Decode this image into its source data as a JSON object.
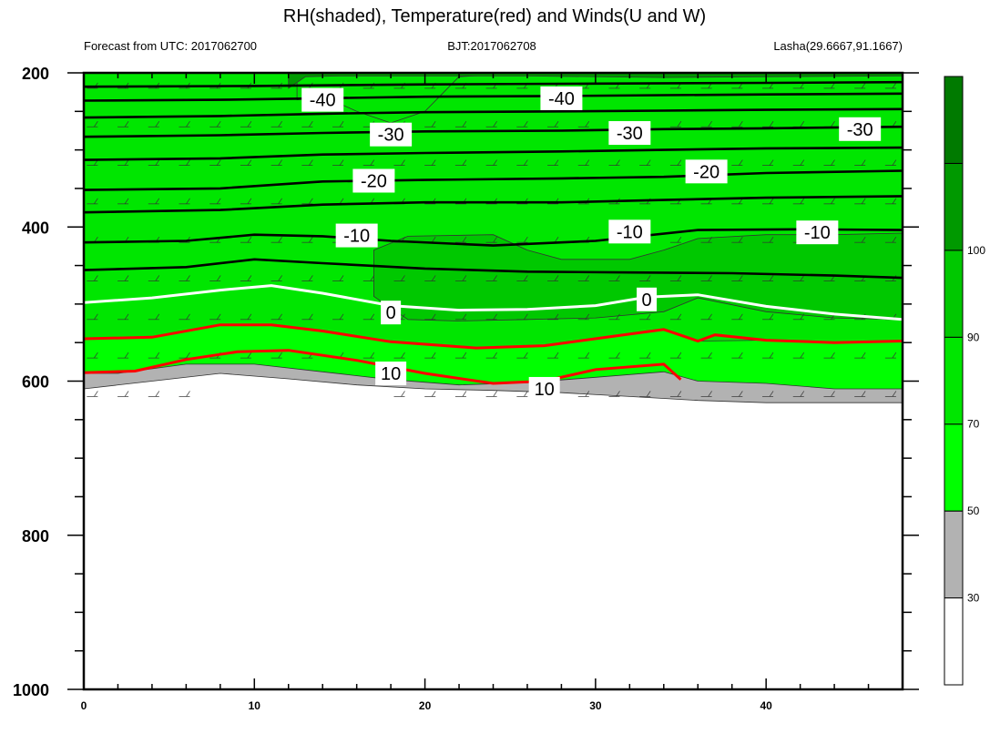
{
  "chart_data": {
    "type": "heatmap",
    "title": "RH(shaded), Temperature(red) and Winds(U and W)",
    "subtitle_left": "Forecast from UTC: 2017062700",
    "subtitle_center": "BJT:2017062708",
    "subtitle_right": "Lasha(29.6667,91.1667)",
    "x_ticks": [
      0,
      10,
      20,
      30,
      40
    ],
    "xlim": [
      0,
      48
    ],
    "y_ticks": [
      200,
      400,
      600,
      800,
      1000
    ],
    "ylim": [
      1000,
      200
    ],
    "colorbar": {
      "levels": [
        30,
        50,
        70,
        90,
        100
      ],
      "colors": [
        "#ffffff",
        "#b2b2b2",
        "#00ff00",
        "#00e600",
        "#00c800",
        "#009900",
        "#007a00"
      ]
    },
    "temperature_contour_labels": [
      {
        "text": "-40",
        "x": 14,
        "y": 235
      },
      {
        "text": "-40",
        "x": 28,
        "y": 233
      },
      {
        "text": "-30",
        "x": 18,
        "y": 280
      },
      {
        "text": "-30",
        "x": 32,
        "y": 278
      },
      {
        "text": "-30",
        "x": 45.5,
        "y": 273
      },
      {
        "text": "-20",
        "x": 17,
        "y": 340
      },
      {
        "text": "-20",
        "x": 36.5,
        "y": 328
      },
      {
        "text": "-10",
        "x": 16,
        "y": 411
      },
      {
        "text": "-10",
        "x": 32,
        "y": 406
      },
      {
        "text": "-10",
        "x": 43,
        "y": 407
      },
      {
        "text": "0",
        "x": 18,
        "y": 511
      },
      {
        "text": "0",
        "x": 33,
        "y": 494
      },
      {
        "text": "10",
        "x": 18,
        "y": 590
      },
      {
        "text": "10",
        "x": 27,
        "y": 610
      }
    ],
    "temperature_lines": [
      {
        "name": "0",
        "color": "#ffffff",
        "points": [
          [
            0,
            498
          ],
          [
            4,
            492
          ],
          [
            8,
            482
          ],
          [
            11,
            476
          ],
          [
            14,
            486
          ],
          [
            18,
            502
          ],
          [
            22,
            508
          ],
          [
            26,
            507
          ],
          [
            30,
            502
          ],
          [
            33,
            491
          ],
          [
            36,
            488
          ],
          [
            40,
            503
          ],
          [
            44,
            513
          ],
          [
            48,
            520
          ]
        ]
      },
      {
        "name": "5",
        "color": "#ff0000",
        "points": [
          [
            0,
            545
          ],
          [
            4,
            543
          ],
          [
            8,
            527
          ],
          [
            11,
            527
          ],
          [
            14,
            535
          ],
          [
            18,
            549
          ],
          [
            23,
            557
          ],
          [
            27,
            554
          ],
          [
            31,
            542
          ],
          [
            34,
            533
          ],
          [
            36,
            548
          ],
          [
            37,
            540
          ],
          [
            40,
            547
          ],
          [
            44,
            550
          ],
          [
            48,
            548
          ]
        ]
      },
      {
        "name": "10",
        "color": "#ff0000",
        "points": [
          [
            0,
            589
          ],
          [
            3,
            587
          ],
          [
            6,
            572
          ],
          [
            9,
            562
          ],
          [
            12,
            560
          ],
          [
            16,
            573
          ],
          [
            20,
            590
          ],
          [
            24,
            603
          ],
          [
            27,
            600
          ],
          [
            30,
            585
          ],
          [
            34,
            578
          ],
          [
            35,
            598
          ]
        ]
      },
      {
        "name": "-10",
        "color": "#000000",
        "points": [
          [
            0,
            420
          ],
          [
            6,
            418
          ],
          [
            10,
            410
          ],
          [
            14,
            412
          ],
          [
            18,
            418
          ],
          [
            24,
            424
          ],
          [
            30,
            418
          ],
          [
            36,
            404
          ],
          [
            42,
            403
          ],
          [
            48,
            404
          ]
        ]
      },
      {
        "name": "-5",
        "color": "#000000",
        "points": [
          [
            0,
            456
          ],
          [
            6,
            452
          ],
          [
            10,
            442
          ],
          [
            14,
            447
          ],
          [
            20,
            454
          ],
          [
            26,
            458
          ],
          [
            32,
            459
          ],
          [
            38,
            460
          ],
          [
            44,
            463
          ],
          [
            48,
            466
          ]
        ]
      },
      {
        "name": "-20",
        "color": "#000000",
        "points": [
          [
            0,
            352
          ],
          [
            8,
            350
          ],
          [
            14,
            341
          ],
          [
            20,
            339
          ],
          [
            28,
            337
          ],
          [
            34,
            335
          ],
          [
            40,
            330
          ],
          [
            48,
            327
          ]
        ]
      },
      {
        "name": "-15",
        "color": "#000000",
        "points": [
          [
            0,
            381
          ],
          [
            8,
            378
          ],
          [
            14,
            371
          ],
          [
            20,
            368
          ],
          [
            28,
            368
          ],
          [
            34,
            365
          ],
          [
            40,
            362
          ],
          [
            48,
            360
          ]
        ]
      },
      {
        "name": "-25",
        "color": "#000000",
        "points": [
          [
            0,
            313
          ],
          [
            8,
            311
          ],
          [
            14,
            306
          ],
          [
            20,
            304
          ],
          [
            28,
            302
          ],
          [
            34,
            300
          ],
          [
            40,
            298
          ],
          [
            48,
            297
          ]
        ]
      },
      {
        "name": "-30",
        "color": "#000000",
        "points": [
          [
            0,
            283
          ],
          [
            8,
            281
          ],
          [
            14,
            278
          ],
          [
            20,
            276
          ],
          [
            28,
            275
          ],
          [
            34,
            273
          ],
          [
            40,
            272
          ],
          [
            48,
            270
          ]
        ]
      },
      {
        "name": "-35",
        "color": "#000000",
        "points": [
          [
            0,
            258
          ],
          [
            8,
            256
          ],
          [
            14,
            253
          ],
          [
            20,
            251
          ],
          [
            28,
            250
          ],
          [
            34,
            249
          ],
          [
            40,
            248
          ],
          [
            48,
            247
          ]
        ]
      },
      {
        "name": "-40",
        "color": "#000000",
        "points": [
          [
            0,
            236
          ],
          [
            8,
            235
          ],
          [
            14,
            233
          ],
          [
            20,
            231
          ],
          [
            28,
            230
          ],
          [
            34,
            229
          ],
          [
            40,
            228
          ],
          [
            48,
            227
          ]
        ]
      },
      {
        "name": "-45",
        "color": "#000000",
        "points": [
          [
            0,
            218
          ],
          [
            10,
            217
          ],
          [
            20,
            215
          ],
          [
            30,
            214
          ],
          [
            40,
            213
          ],
          [
            48,
            212
          ]
        ]
      }
    ],
    "rh_regions": [
      {
        "level": 30,
        "points": [
          [
            0,
            460
          ],
          [
            2,
            415
          ],
          [
            4,
            372
          ],
          [
            8,
            326
          ],
          [
            10,
            305
          ],
          [
            10.5,
            200
          ],
          [
            48,
            200
          ],
          [
            48,
            628
          ],
          [
            44,
            628
          ],
          [
            40,
            628
          ],
          [
            36,
            625
          ],
          [
            32,
            620
          ],
          [
            28,
            615
          ],
          [
            24,
            612
          ],
          [
            20,
            610
          ],
          [
            16,
            605
          ],
          [
            12,
            597
          ],
          [
            8,
            590
          ],
          [
            4,
            600
          ],
          [
            0,
            610
          ]
        ]
      },
      {
        "level": 50,
        "points": [
          [
            0,
            500
          ],
          [
            2,
            480
          ],
          [
            4,
            430
          ],
          [
            7,
            380
          ],
          [
            8,
            310
          ],
          [
            9.5,
            330
          ],
          [
            10.5,
            300
          ],
          [
            11,
            280
          ],
          [
            12,
            220
          ],
          [
            12,
            200
          ],
          [
            48,
            200
          ],
          [
            48,
            610
          ],
          [
            44,
            610
          ],
          [
            40,
            603
          ],
          [
            36,
            600
          ],
          [
            34,
            588
          ],
          [
            30,
            595
          ],
          [
            26,
            602
          ],
          [
            22,
            605
          ],
          [
            18,
            598
          ],
          [
            14,
            588
          ],
          [
            10,
            578
          ],
          [
            6,
            578
          ],
          [
            2,
            590
          ],
          [
            0,
            590
          ]
        ]
      },
      {
        "level": 70,
        "points": [
          [
            0,
            545
          ],
          [
            4,
            543
          ],
          [
            8,
            527
          ],
          [
            11,
            527
          ],
          [
            14,
            535
          ],
          [
            18,
            549
          ],
          [
            23,
            557
          ],
          [
            27,
            554
          ],
          [
            31,
            542
          ],
          [
            34,
            533
          ],
          [
            36,
            548
          ],
          [
            40,
            547
          ],
          [
            44,
            550
          ],
          [
            48,
            548
          ],
          [
            48,
            200
          ],
          [
            12.5,
            200
          ],
          [
            12.5,
            235
          ],
          [
            14,
            230
          ],
          [
            16,
            250
          ],
          [
            18,
            265
          ],
          [
            20,
            250
          ],
          [
            22,
            205
          ],
          [
            26,
            200
          ],
          [
            0,
            200
          ]
        ]
      },
      {
        "level": 90,
        "points": [
          [
            17,
            430
          ],
          [
            19,
            412
          ],
          [
            24,
            410
          ],
          [
            26,
            430
          ],
          [
            28,
            442
          ],
          [
            32,
            442
          ],
          [
            34,
            430
          ],
          [
            36,
            415
          ],
          [
            40,
            410
          ],
          [
            44,
            410
          ],
          [
            48,
            408
          ],
          [
            48,
            520
          ],
          [
            44,
            518
          ],
          [
            40,
            510
          ],
          [
            36,
            492
          ],
          [
            34,
            510
          ],
          [
            30,
            518
          ],
          [
            26,
            520
          ],
          [
            22,
            522
          ],
          [
            19,
            520
          ],
          [
            17,
            490
          ]
        ]
      },
      {
        "level": 100,
        "points": [
          [
            12,
            220
          ],
          [
            13,
            205
          ],
          [
            15,
            204
          ],
          [
            20,
            204
          ],
          [
            26,
            204
          ],
          [
            34,
            206
          ],
          [
            40,
            205
          ],
          [
            48,
            204
          ],
          [
            48,
            200
          ],
          [
            12,
            200
          ]
        ]
      }
    ]
  }
}
